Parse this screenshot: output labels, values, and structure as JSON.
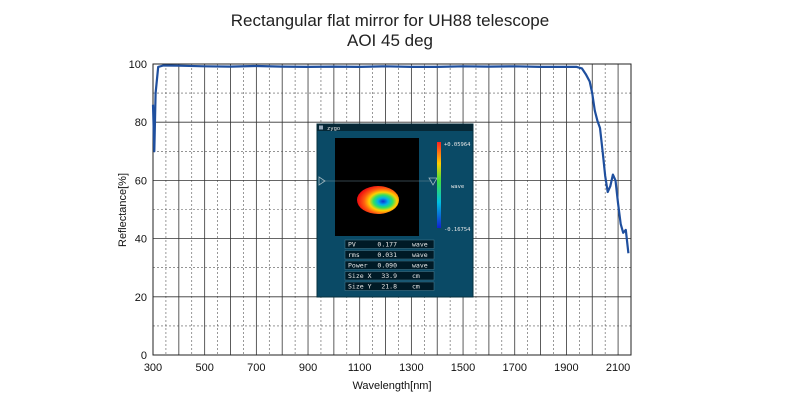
{
  "chart_data": {
    "type": "line",
    "title": [
      "Rectangular flat mirror for UH88 telescope",
      "AOI 45 deg"
    ],
    "xlabel": "Wavelength[nm]",
    "ylabel": "Reflectance[%]",
    "xlim": [
      300,
      2150
    ],
    "ylim": [
      0,
      100
    ],
    "x_ticks": [
      300,
      500,
      700,
      900,
      1100,
      1300,
      1500,
      1700,
      1900,
      2100
    ],
    "y_ticks": [
      0,
      20,
      40,
      60,
      80,
      100
    ],
    "grid": "major solid, minor dashed",
    "series": [
      {
        "color": "#1f4f9e",
        "x": [
          300,
          305,
          310,
          320,
          340,
          400,
          500,
          600,
          700,
          800,
          900,
          1000,
          1100,
          1200,
          1300,
          1400,
          1500,
          1600,
          1700,
          1800,
          1900,
          1940,
          1960,
          1975,
          1990,
          2000,
          2010,
          2020,
          2030,
          2040,
          2050,
          2060,
          2070,
          2080,
          2090,
          2100,
          2110,
          2120,
          2130,
          2140
        ],
        "values": [
          86,
          70,
          90,
          99,
          99.5,
          99.4,
          99.2,
          99.1,
          99.3,
          99.1,
          99.0,
          99.1,
          99.0,
          99.2,
          99.0,
          99.0,
          99.2,
          99.1,
          99.2,
          99.0,
          99.0,
          99.0,
          98.5,
          96.5,
          94.0,
          90.0,
          84.0,
          80.5,
          78.0,
          70.0,
          61.5,
          56.0,
          58.0,
          62.0,
          60.0,
          52.0,
          45.0,
          42.0,
          43.0,
          35.0
        ]
      }
    ]
  },
  "inset": {
    "window_label": "zygo",
    "colorbar_max": "+0.05964",
    "colorbar_unit": "wave",
    "colorbar_min": "-0.16754",
    "stats": [
      {
        "name": "PV",
        "value": "0.177",
        "unit": "wave"
      },
      {
        "name": "rms",
        "value": "0.031",
        "unit": "wave"
      },
      {
        "name": "Power",
        "value": "0.090",
        "unit": "wave"
      },
      {
        "name": "Size X",
        "value": "33.9",
        "unit": "cm"
      },
      {
        "name": "Size Y",
        "value": "21.8",
        "unit": "cm"
      }
    ]
  }
}
